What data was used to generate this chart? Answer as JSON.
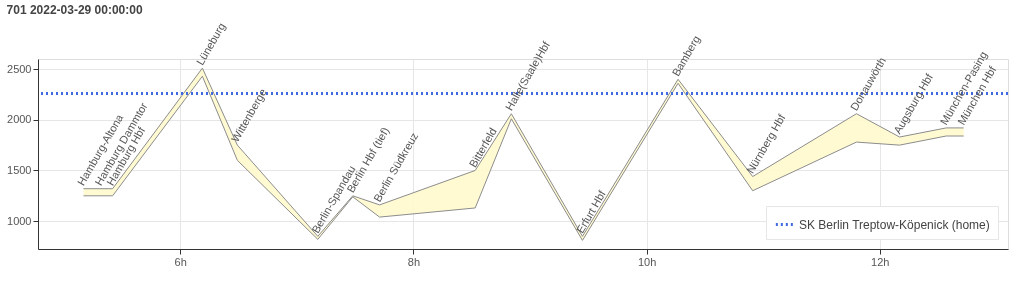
{
  "chart_data": {
    "type": "line",
    "title": "701 2022-03-29 00:00:00",
    "x": [
      5.17,
      5.32,
      5.42,
      6.19,
      6.49,
      7.18,
      7.48,
      7.71,
      8.53,
      8.84,
      9.45,
      10.27,
      10.91,
      11.8,
      12.17,
      12.57,
      12.72
    ],
    "series": [
      {
        "color": "#8c8c8c",
        "values": [
          1320,
          1320,
          1320,
          2510,
          1750,
          850,
          1250,
          1160,
          1500,
          2060,
          850,
          2400,
          1440,
          2060,
          1830,
          1920,
          1920
        ],
        "lower": [
          1250,
          1250,
          1250,
          2430,
          1600,
          820,
          1240,
          1040,
          1130,
          2010,
          810,
          2360,
          1300,
          1780,
          1750,
          1840,
          1840
        ],
        "upper": [
          1320,
          1320,
          1320,
          2510,
          1750,
          850,
          1250,
          1160,
          1500,
          2060,
          850,
          2400,
          1440,
          2060,
          1830,
          1920,
          1920
        ]
      },
      {
        "color": "#8c8c8c",
        "values": [
          1250,
          1250,
          1250,
          2430,
          1600,
          820,
          1240,
          1040,
          1130,
          2010,
          810,
          2360,
          1300,
          1780,
          1750,
          1840,
          1840
        ]
      }
    ],
    "xlim": [
      4.78,
      13.1
    ],
    "xticks": [
      {
        "value": 6,
        "label": "6h"
      },
      {
        "value": 8,
        "label": "8h"
      },
      {
        "value": 10,
        "label": "10h"
      },
      {
        "value": 12,
        "label": "12h"
      }
    ],
    "ylim": [
      725,
      2600
    ],
    "yticks": [
      1000,
      1500,
      2000,
      2500
    ],
    "grid": true,
    "legend": "bottom right",
    "marker": "none",
    "ref_lines": [
      {
        "axis": "y",
        "value": 2260,
        "label": "SK Berlin Treptow-Köpenick (home)",
        "color": "#4169e1",
        "line_style": "dotted"
      }
    ],
    "annotations": [
      {
        "text": "Hamburg-Altona",
        "x": 5.17,
        "y": 1320
      },
      {
        "text": "Hamburg Dammtor",
        "x": 5.32,
        "y": 1320
      },
      {
        "text": "Hamburg Hbf",
        "x": 5.42,
        "y": 1320
      },
      {
        "text": "Lüneburg",
        "x": 6.19,
        "y": 2510
      },
      {
        "text": "Wittenberge",
        "x": 6.49,
        "y": 1750
      },
      {
        "text": "Berlin-Spandau",
        "x": 7.18,
        "y": 850
      },
      {
        "text": "Berlin Hbf (tief)",
        "x": 7.48,
        "y": 1250
      },
      {
        "text": "Berlin Südkreuz",
        "x": 7.71,
        "y": 1160
      },
      {
        "text": "Bitterfeld",
        "x": 8.53,
        "y": 1500
      },
      {
        "text": "Halle(Saale)Hbf",
        "x": 8.84,
        "y": 2060
      },
      {
        "text": "Erfurt Hbf",
        "x": 9.45,
        "y": 850
      },
      {
        "text": "Bamberg",
        "x": 10.27,
        "y": 2400
      },
      {
        "text": "Nürnberg Hbf",
        "x": 10.91,
        "y": 1440
      },
      {
        "text": "Donauwörth",
        "x": 11.8,
        "y": 2060
      },
      {
        "text": "Augsburg Hbf",
        "x": 12.17,
        "y": 1830
      },
      {
        "text": "München-Pasing",
        "x": 12.57,
        "y": 1920
      },
      {
        "text": "München Hbf",
        "x": 12.72,
        "y": 1920
      }
    ]
  }
}
